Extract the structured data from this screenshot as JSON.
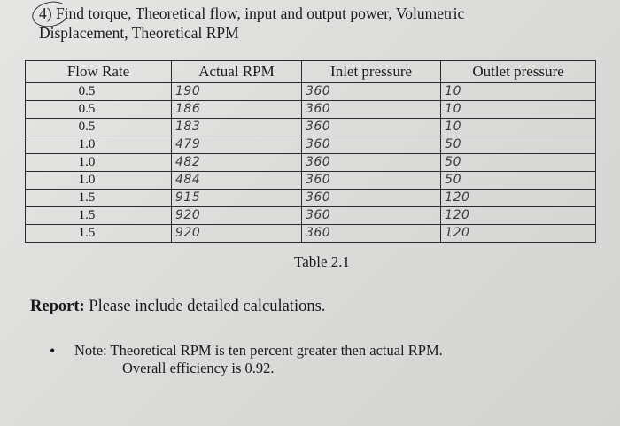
{
  "question": {
    "line1": "4) Find torque, Theoretical flow, input and output power, Volumetric",
    "line2": "Displacement, Theoretical RPM"
  },
  "table": {
    "headers": [
      "Flow Rate",
      "Actual RPM",
      "Inlet pressure",
      "Outlet pressure"
    ],
    "rows": [
      [
        "0.5",
        "190",
        "360",
        "10"
      ],
      [
        "0.5",
        "186",
        "360",
        "10"
      ],
      [
        "0.5",
        "183",
        "360",
        "10"
      ],
      [
        "1.0",
        "479",
        "360",
        "50"
      ],
      [
        "1.0",
        "482",
        "360",
        "50"
      ],
      [
        "1.0",
        "484",
        "360",
        "50"
      ],
      [
        "1.5",
        "915",
        "360",
        "120"
      ],
      [
        "1.5",
        "920",
        "360",
        "120"
      ],
      [
        "1.5",
        "920",
        "360",
        "120"
      ]
    ],
    "caption": "Table 2.1"
  },
  "report": {
    "label": "Report:",
    "text": " Please include detailed calculations."
  },
  "note": {
    "bullet": "•",
    "line1": "Note: Theoretical RPM is ten percent greater then actual RPM.",
    "line2": "Overall efficiency is 0.92."
  }
}
